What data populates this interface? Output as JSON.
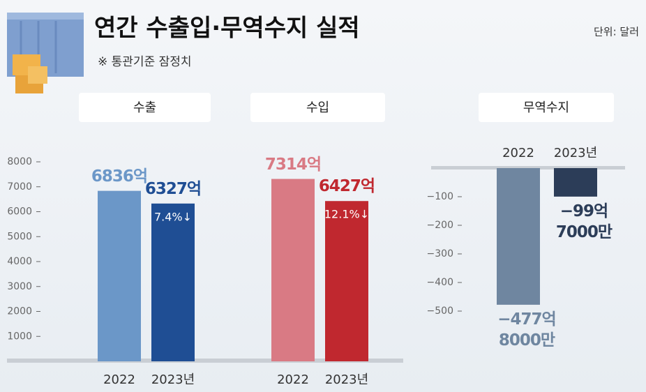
{
  "header": {
    "title": "연간 수출입·무역수지 실적",
    "subtitle": "※ 통관기준 잠정치",
    "unit": "단위: 달러"
  },
  "chart_data": [
    {
      "type": "bar",
      "title": "수출",
      "categories": [
        "2022",
        "2023년"
      ],
      "values": [
        6836,
        6327
      ],
      "value_labels": [
        "6836억",
        "6327억"
      ],
      "colors": [
        "#6b97c8",
        "#1f4e94"
      ],
      "annotation": "7.4%↓",
      "ylim": [
        0,
        8000
      ],
      "yticks": [
        1000,
        2000,
        3000,
        4000,
        5000,
        6000,
        7000,
        8000
      ]
    },
    {
      "type": "bar",
      "title": "수입",
      "categories": [
        "2022",
        "2023년"
      ],
      "values": [
        7314,
        6427
      ],
      "value_labels": [
        "7314억",
        "6427억"
      ],
      "colors": [
        "#d97a84",
        "#c0282f"
      ],
      "annotation": "12.1%↓",
      "ylim": [
        0,
        8000
      ]
    },
    {
      "type": "bar",
      "title": "무역수지",
      "categories": [
        "2022",
        "2023년"
      ],
      "values": [
        -477.8,
        -99.7
      ],
      "value_labels": [
        "−477억\n8000만",
        "−99억\n7000만"
      ],
      "colors": [
        "#6f86a0",
        "#2c3d58"
      ],
      "ylim": [
        -550,
        0
      ],
      "yticks": [
        {
          "value": -100,
          "label": "−100"
        },
        {
          "value": -200,
          "label": "−200"
        },
        {
          "value": -300,
          "label": "−300"
        },
        {
          "value": -400,
          "label": "−400"
        },
        {
          "value": -500,
          "label": "−500"
        }
      ]
    }
  ]
}
